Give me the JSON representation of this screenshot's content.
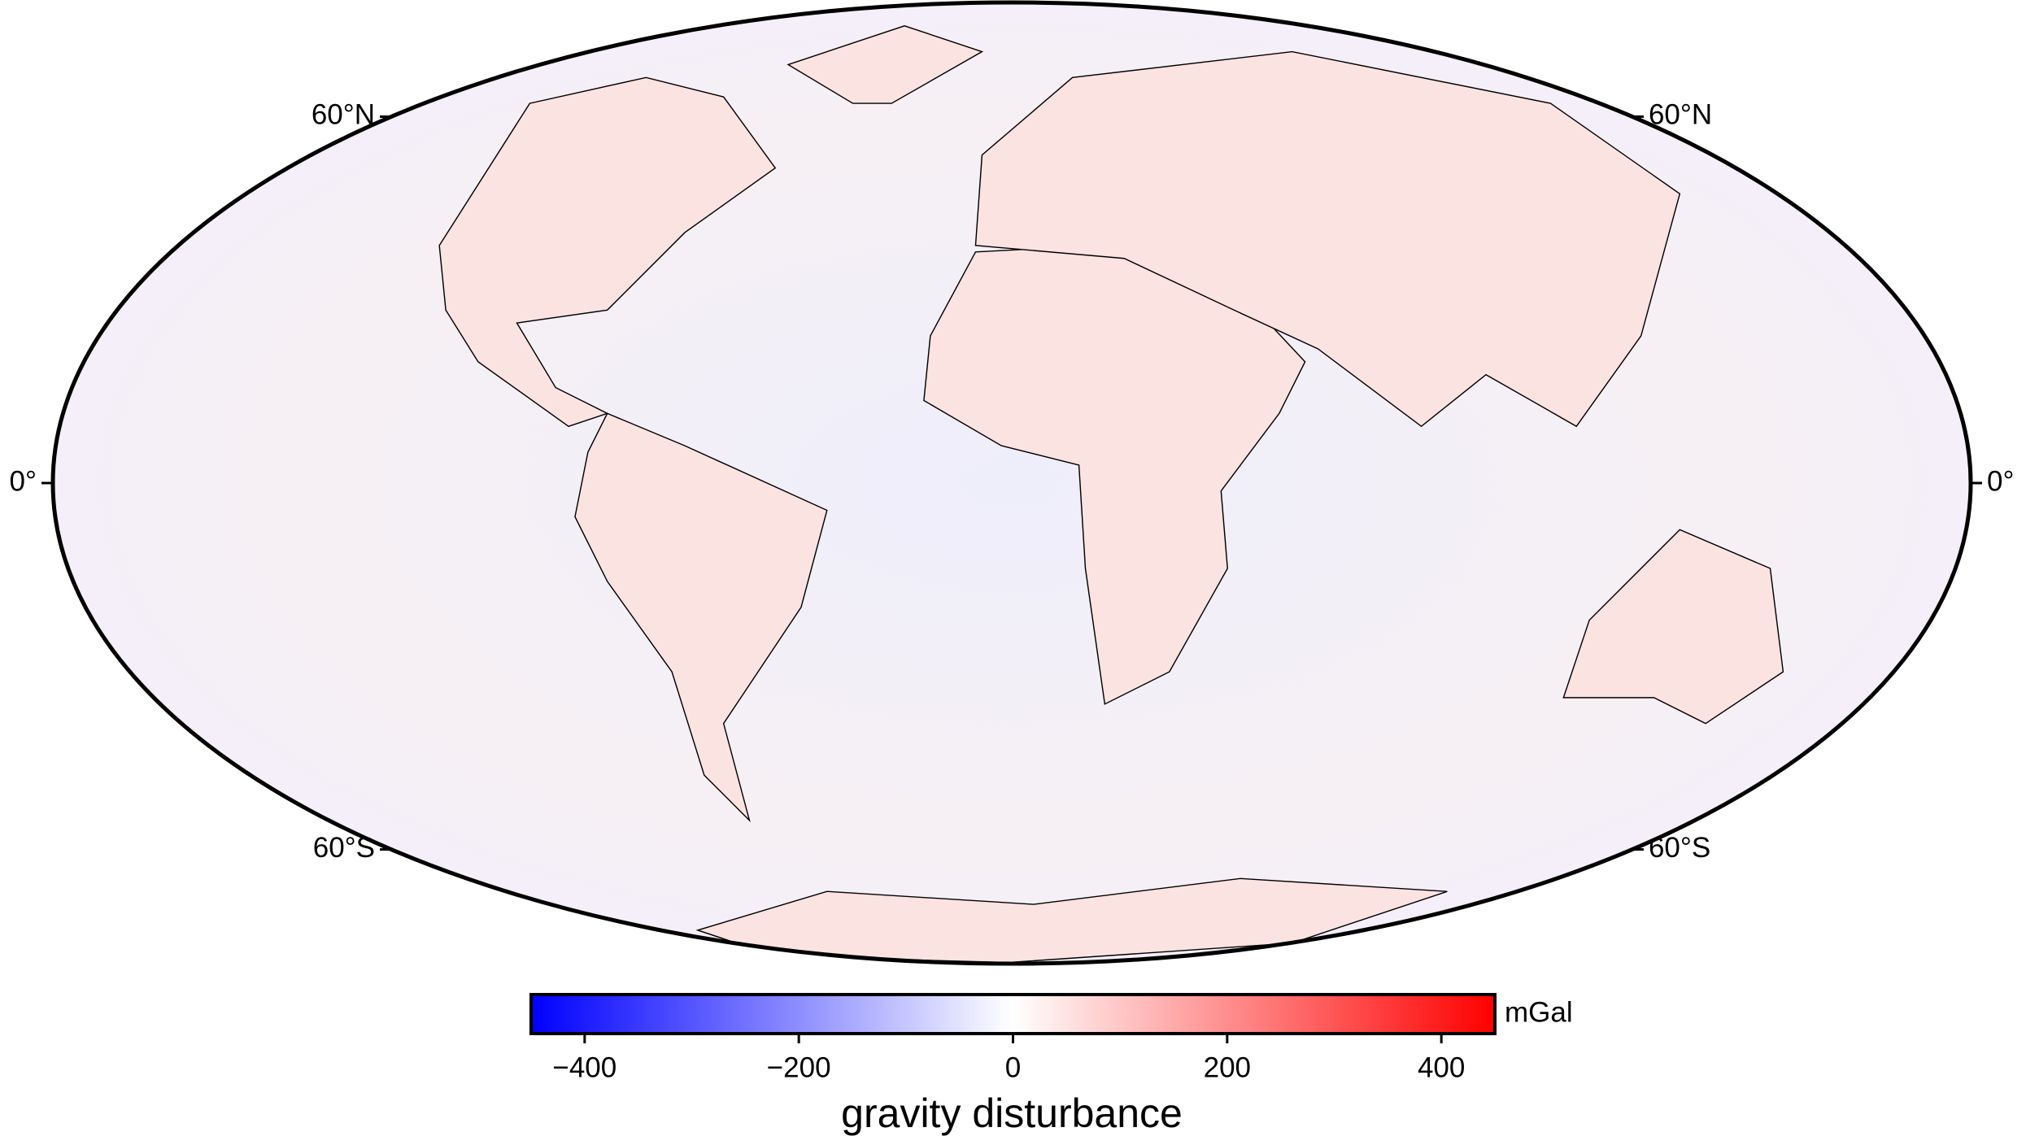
{
  "map": {
    "lat_labels": {
      "left": [
        {
          "value": 60,
          "label": "60°N"
        },
        {
          "value": 0,
          "label": "0°"
        },
        {
          "value": -60,
          "label": "60°S"
        }
      ],
      "right": [
        {
          "value": 60,
          "label": "60°N"
        },
        {
          "value": 0,
          "label": "0°"
        },
        {
          "value": -60,
          "label": "60°S"
        }
      ]
    },
    "colorbar": {
      "label": "gravity disturbance",
      "unit": "mGal",
      "lim": [
        -450,
        450
      ],
      "ticks": [
        {
          "value": -400,
          "label": "−400"
        },
        {
          "value": -200,
          "label": "−200"
        },
        0,
        200,
        400
      ],
      "colors": [
        "#0000ff",
        "#ffffff",
        "#ff0000"
      ]
    }
  }
}
